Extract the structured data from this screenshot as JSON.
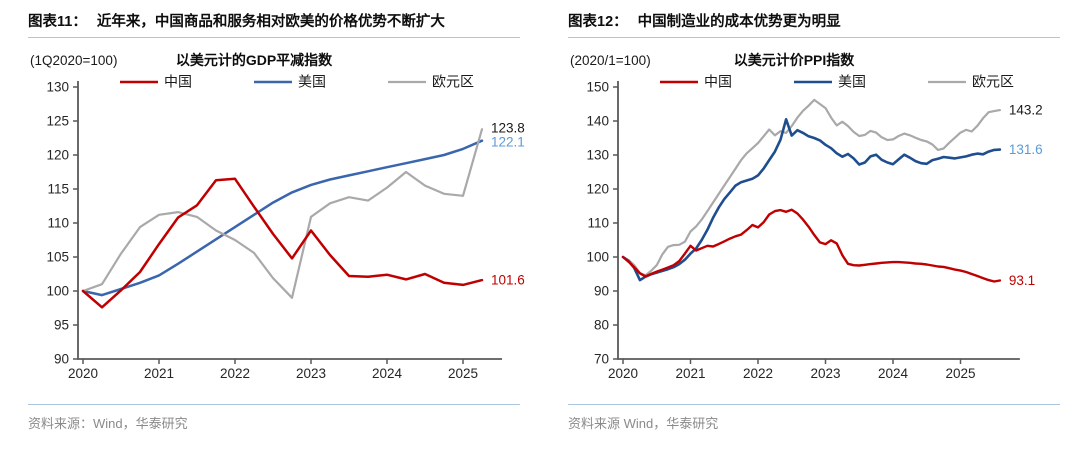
{
  "chart_data": [
    {
      "id": "gdp-deflator-usd",
      "type": "line",
      "figure_label": "图表11：",
      "figure_title": "近年来，中国商品和服务相对欧美的价格优势不断扩大",
      "unit_note": "(1Q2020=100)",
      "title": "以美元计的GDP平减指数",
      "source": "资料来源：Wind，华泰研究",
      "x_start": 2020,
      "x_step": 0.25,
      "x_note": "quarterly, 2020Q1-2025Q2",
      "xticks": [
        2020,
        2021,
        2022,
        2023,
        2024,
        2025
      ],
      "ylim": [
        90,
        130
      ],
      "ytick_step": 5,
      "grid": false,
      "legend_position": "top",
      "axis_color": "#595959",
      "tick_label_color": "#262626",
      "series": [
        {
          "key": "china",
          "name": "中国",
          "color": "#c00000",
          "width": 2.5,
          "z": 3,
          "end_label": "101.6",
          "end_label_color": "#c00000",
          "values": [
            100,
            97.6,
            100.1,
            102.8,
            106.9,
            110.8,
            112.6,
            116.3,
            116.5,
            112.4,
            108.4,
            104.8,
            108.9,
            105.3,
            102.2,
            102.1,
            102.4,
            101.7,
            102.5,
            101.2,
            100.9,
            101.6
          ]
        },
        {
          "key": "us",
          "name": "美国",
          "color": "#3a66ad",
          "width": 2.5,
          "z": 1,
          "end_label": "122.1",
          "end_label_color": "#5b9bd5",
          "values": [
            100,
            99.4,
            100.3,
            101.2,
            102.3,
            104.0,
            105.8,
            107.6,
            109.4,
            111.2,
            113.0,
            114.5,
            115.6,
            116.4,
            117.0,
            117.6,
            118.2,
            118.8,
            119.4,
            120.0,
            120.9,
            122.1
          ]
        },
        {
          "key": "eurozone",
          "name": "欧元区",
          "color": "#a9a9a9",
          "width": 2.2,
          "z": 2,
          "end_label": "123.8",
          "end_label_color": "#1a1a1a",
          "values": [
            100,
            101.0,
            105.5,
            109.4,
            111.2,
            111.6,
            110.9,
            108.9,
            107.5,
            105.6,
            101.9,
            99.0,
            110.9,
            112.9,
            113.8,
            113.3,
            115.2,
            117.5,
            115.5,
            114.3,
            114.0,
            123.8
          ]
        }
      ]
    },
    {
      "id": "ppi-usd",
      "type": "line",
      "figure_label": "图表12：",
      "figure_title": "中国制造业的成本优势更为明显",
      "unit_note": "(2020/1=100)",
      "title": "以美元计价PPI指数",
      "source": "资料来源 Wind，华泰研究",
      "x_start": 2020,
      "x_step": 0.0833333,
      "x_note": "monthly, 2020/01-2025/08",
      "xticks": [
        2020,
        2021,
        2022,
        2023,
        2024,
        2025
      ],
      "ylim": [
        70,
        150
      ],
      "ytick_step": 10,
      "grid": false,
      "legend_position": "top",
      "axis_color": "#595959",
      "tick_label_color": "#262626",
      "series": [
        {
          "key": "china",
          "name": "中国",
          "color": "#c00000",
          "width": 2.4,
          "z": 3,
          "end_label": "93.1",
          "end_label_color": "#c00000",
          "values": [
            100,
            98.6,
            97.0,
            95.2,
            94.3,
            95.0,
            95.7,
            96.3,
            96.9,
            97.6,
            98.8,
            101.0,
            103.3,
            101.9,
            102.6,
            103.3,
            103.1,
            103.8,
            104.6,
            105.4,
            106.1,
            106.6,
            107.9,
            109.4,
            108.7,
            110.2,
            112.5,
            113.5,
            113.8,
            113.3,
            113.9,
            112.8,
            111.0,
            108.9,
            106.5,
            104.3,
            103.8,
            104.9,
            104.0,
            100.5,
            98.0,
            97.6,
            97.5,
            97.7,
            97.9,
            98.1,
            98.3,
            98.4,
            98.5,
            98.5,
            98.4,
            98.3,
            98.1,
            98.0,
            97.8,
            97.5,
            97.2,
            97.1,
            96.7,
            96.3,
            96.0,
            95.6,
            95.0,
            94.4,
            93.8,
            93.2,
            92.8,
            93.1
          ]
        },
        {
          "key": "us",
          "name": "美国",
          "color": "#1f4e8f",
          "width": 2.6,
          "z": 2,
          "end_label": "131.6",
          "end_label_color": "#5b9bd5",
          "values": [
            100,
            98.8,
            96.8,
            93.2,
            94.2,
            94.9,
            95.4,
            95.9,
            96.4,
            97.0,
            97.9,
            99.2,
            101.0,
            102.5,
            105.0,
            108.0,
            111.5,
            114.5,
            117.0,
            119.0,
            121.0,
            122.0,
            122.5,
            123.0,
            124.0,
            126.0,
            128.5,
            131.0,
            134.5,
            140.5,
            135.7,
            137.3,
            136.5,
            135.5,
            135.0,
            134.3,
            133.0,
            132.0,
            130.5,
            129.5,
            130.3,
            129.0,
            127.2,
            127.8,
            129.6,
            130.1,
            128.6,
            127.8,
            127.3,
            128.7,
            130.1,
            129.2,
            128.2,
            127.6,
            127.4,
            128.5,
            128.9,
            129.4,
            129.2,
            129.0,
            129.3,
            129.6,
            130.1,
            130.4,
            130.2,
            131.0,
            131.5,
            131.6
          ]
        },
        {
          "key": "eurozone",
          "name": "欧元区",
          "color": "#a9a9a9",
          "width": 2.2,
          "z": 1,
          "end_label": "143.2",
          "end_label_color": "#1a1a1a",
          "values": [
            100,
            99.1,
            97.6,
            95.3,
            94.6,
            95.9,
            97.6,
            100.8,
            103.0,
            103.5,
            103.6,
            104.5,
            107.5,
            109.0,
            111.0,
            113.5,
            116.0,
            118.5,
            121.0,
            123.5,
            126.0,
            128.5,
            130.5,
            132.0,
            133.5,
            135.5,
            137.5,
            135.8,
            137.0,
            136.5,
            138.5,
            141.0,
            143.0,
            144.5,
            146.2,
            145.0,
            143.8,
            141.0,
            138.7,
            139.8,
            138.5,
            136.8,
            135.6,
            135.9,
            137.1,
            136.6,
            135.2,
            134.4,
            134.6,
            135.6,
            136.3,
            135.8,
            135.1,
            134.4,
            134.0,
            133.1,
            131.5,
            131.9,
            133.6,
            135.1,
            136.6,
            137.4,
            136.9,
            138.6,
            140.8,
            142.6,
            142.9,
            143.2
          ]
        }
      ]
    }
  ]
}
